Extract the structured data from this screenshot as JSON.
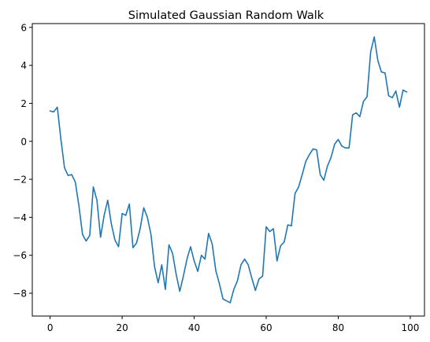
{
  "chart_data": {
    "type": "line",
    "title": "Simulated Gaussian Random Walk",
    "xlabel": "",
    "ylabel": "",
    "xlim": [
      -4.95,
      103.95
    ],
    "ylim": [
      -9.2,
      6.2
    ],
    "grid": false,
    "x_ticks": [
      0,
      20,
      40,
      60,
      80,
      100
    ],
    "y_ticks": [
      -8,
      -6,
      -4,
      -2,
      0,
      2,
      4,
      6
    ],
    "series": [
      {
        "color": "#1f77b4",
        "x": [
          0,
          1,
          2,
          3,
          4,
          5,
          6,
          7,
          8,
          9,
          10,
          11,
          12,
          13,
          14,
          15,
          16,
          17,
          18,
          19,
          20,
          21,
          22,
          23,
          24,
          25,
          26,
          27,
          28,
          29,
          30,
          31,
          32,
          33,
          34,
          35,
          36,
          37,
          38,
          39,
          40,
          41,
          42,
          43,
          44,
          45,
          46,
          47,
          48,
          49,
          50,
          51,
          52,
          53,
          54,
          55,
          56,
          57,
          58,
          59,
          60,
          61,
          62,
          63,
          64,
          65,
          66,
          67,
          68,
          69,
          70,
          71,
          72,
          73,
          74,
          75,
          76,
          77,
          78,
          79,
          80,
          81,
          82,
          83,
          84,
          85,
          86,
          87,
          88,
          89,
          90,
          91,
          92,
          93,
          94,
          95,
          96,
          97,
          98,
          99
        ],
        "values": [
          1.6,
          1.55,
          1.8,
          0.1,
          -1.4,
          -1.8,
          -1.75,
          -2.15,
          -3.4,
          -4.9,
          -5.25,
          -4.95,
          -2.4,
          -3.1,
          -5.05,
          -3.9,
          -3.1,
          -4.35,
          -5.2,
          -5.55,
          -3.8,
          -3.9,
          -3.3,
          -5.6,
          -5.35,
          -4.6,
          -3.5,
          -4.0,
          -4.9,
          -6.6,
          -7.45,
          -6.5,
          -7.8,
          -5.45,
          -5.9,
          -7.0,
          -7.9,
          -7.1,
          -6.2,
          -5.55,
          -6.3,
          -6.85,
          -6.0,
          -6.2,
          -4.85,
          -5.4,
          -6.8,
          -7.5,
          -8.3,
          -8.4,
          -8.5,
          -7.8,
          -7.35,
          -6.5,
          -6.2,
          -6.5,
          -7.2,
          -7.85,
          -7.25,
          -7.1,
          -4.5,
          -4.75,
          -4.6,
          -6.3,
          -5.5,
          -5.3,
          -4.4,
          -4.45,
          -2.75,
          -2.4,
          -1.75,
          -1.05,
          -0.7,
          -0.4,
          -0.45,
          -1.75,
          -2.05,
          -1.3,
          -0.85,
          -0.15,
          0.1,
          -0.25,
          -0.35,
          -0.35,
          1.4,
          1.5,
          1.3,
          2.1,
          2.35,
          4.7,
          5.5,
          4.25,
          3.65,
          3.6,
          2.4,
          2.3,
          2.65,
          1.8,
          2.7,
          2.6
        ]
      }
    ]
  }
}
